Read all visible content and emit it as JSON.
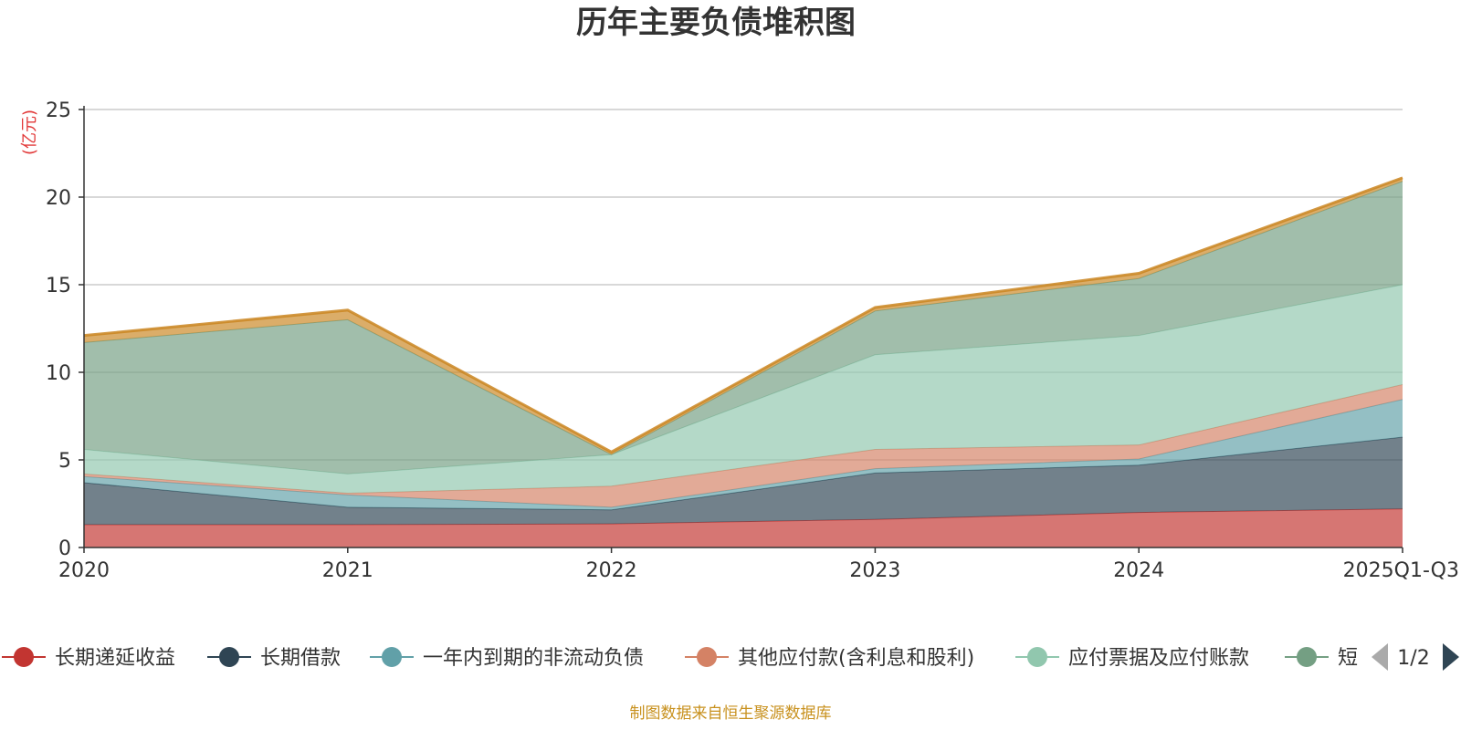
{
  "chart_data": {
    "type": "area",
    "stacked": true,
    "title": "历年主要负债堆积图",
    "unit_label": "(亿元)",
    "categories": [
      "2020",
      "2021",
      "2022",
      "2023",
      "2024",
      "2025Q1-Q3"
    ],
    "ylim": [
      0,
      25
    ],
    "y_ticks": [
      "0",
      "5",
      "10",
      "15",
      "20",
      "25"
    ],
    "grid": true,
    "legend_position": "bottom",
    "legend_page": "1/2",
    "series": [
      {
        "name": "长期递延收益",
        "color": "#c23531",
        "values": [
          1.3,
          1.3,
          1.35,
          1.6,
          2.0,
          2.2
        ]
      },
      {
        "name": "长期借款",
        "color": "#2f4554",
        "values": [
          2.4,
          1.0,
          0.8,
          2.65,
          2.7,
          4.1
        ]
      },
      {
        "name": "一年内到期的非流动负债",
        "color": "#61a0a8",
        "values": [
          0.35,
          0.7,
          0.15,
          0.25,
          0.35,
          2.15
        ]
      },
      {
        "name": "其他应付款(含利息和股利)",
        "color": "#d48265",
        "values": [
          0.15,
          0.1,
          1.2,
          1.1,
          0.8,
          0.85
        ]
      },
      {
        "name": "应付票据及应付账款",
        "color": "#91c7ae",
        "values": [
          1.4,
          1.1,
          1.8,
          5.4,
          6.25,
          5.7
        ]
      },
      {
        "name": "短期借款",
        "color": "#749f83",
        "values": [
          6.1,
          8.8,
          0.0,
          2.5,
          3.25,
          5.9
        ]
      },
      {
        "name": "",
        "color": "#ca8622",
        "values": [
          0.4,
          0.55,
          0.15,
          0.2,
          0.3,
          0.2
        ]
      }
    ],
    "legend_visible": [
      "长期递延收益",
      "长期借款",
      "一年内到期的非流动负债",
      "其他应付款(含利息和股利)",
      "应付票据及应付账款",
      "短"
    ]
  },
  "footer": "制图数据来自恒生聚源数据库",
  "icons": {
    "legend_prev": "triangle-left-icon",
    "legend_next": "triangle-right-icon"
  }
}
